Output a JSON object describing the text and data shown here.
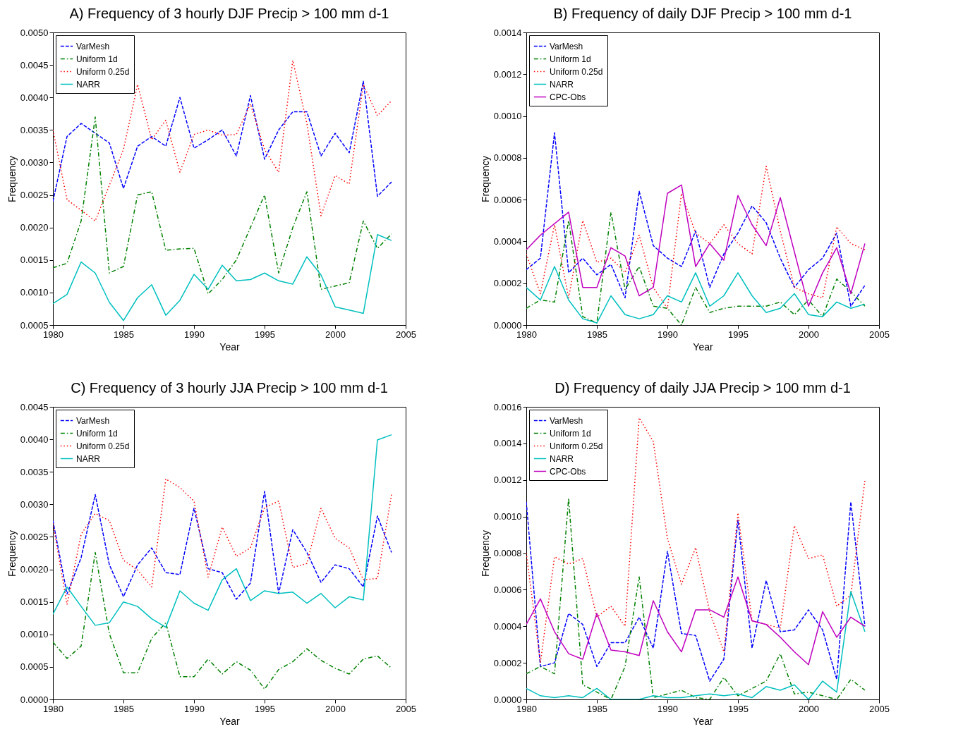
{
  "chart_data": [
    {
      "type": "line",
      "title": "A) Frequency of 3 hourly DJF Precip > 100 mm d-1",
      "xlabel": "Year",
      "ylabel": "Frequency",
      "x": [
        1980,
        1981,
        1982,
        1983,
        1984,
        1985,
        1986,
        1987,
        1988,
        1989,
        1990,
        1991,
        1992,
        1993,
        1994,
        1995,
        1996,
        1997,
        1998,
        1999,
        2000,
        2001,
        2002,
        2003,
        2004
      ],
      "xlim": [
        1980,
        2005
      ],
      "xticks": [
        1980,
        1985,
        1990,
        1995,
        2000,
        2005
      ],
      "ylim": [
        0.0005,
        0.005
      ],
      "yticks": [
        {
          "value": 0.0005,
          "label": "0.0005"
        },
        {
          "value": 0.001,
          "label": "0.0010"
        },
        {
          "value": 0.0015,
          "label": "0.0015"
        },
        {
          "value": 0.002,
          "label": "0.0020"
        },
        {
          "value": 0.0025,
          "label": "0.0025"
        },
        {
          "value": 0.003,
          "label": "0.0030"
        },
        {
          "value": 0.0035,
          "label": "0.0035"
        },
        {
          "value": 0.004,
          "label": "0.0040"
        },
        {
          "value": 0.0045,
          "label": "0.0045"
        },
        {
          "value": 0.005,
          "label": "0.0050"
        }
      ],
      "legend": "top left",
      "grid": false,
      "series": [
        {
          "name": "VarMesh",
          "color": "#0000ff",
          "line_style": "dashed",
          "values": [
            0.0024,
            0.0034,
            0.0036,
            null,
            0.0033,
            0.0026,
            0.00325,
            0.0034,
            0.00325,
            0.004,
            0.00322,
            0.00335,
            0.0035,
            0.0031,
            0.00403,
            0.00305,
            0.0035,
            0.00378,
            0.00378,
            0.0031,
            0.00345,
            0.00315,
            0.00425,
            0.00248,
            0.0027
          ]
        },
        {
          "name": "Uniform 1d",
          "color": "#008000",
          "line_style": "dashdot",
          "values": [
            0.00138,
            0.00145,
            0.0021,
            0.0037,
            0.0013,
            0.0014,
            0.0025,
            0.00255,
            0.00165,
            0.00167,
            0.00168,
            0.00098,
            0.0012,
            0.0015,
            0.002,
            0.0025,
            0.0013,
            0.002,
            0.00255,
            0.00105,
            0.0011,
            0.00115,
            0.0021,
            0.00168,
            0.0019
          ]
        },
        {
          "name": "Uniform 0.25d",
          "color": "#ff0000",
          "line_style": "dotted",
          "values": [
            0.0035,
            0.00243,
            null,
            0.0021,
            null,
            0.0032,
            0.0042,
            0.00335,
            0.00365,
            0.00285,
            0.00343,
            0.0035,
            0.00342,
            0.00343,
            0.0039,
            0.0032,
            0.00285,
            0.00457,
            0.0036,
            0.00218,
            0.0028,
            0.00267,
            0.0042,
            0.00372,
            0.00395
          ]
        },
        {
          "name": "NARR",
          "color": "#00bfbf",
          "line_style": "solid",
          "values": [
            0.00083,
            0.00097,
            0.00147,
            0.0013,
            0.00085,
            0.00057,
            0.00092,
            0.00112,
            0.00065,
            0.00088,
            0.00128,
            0.00105,
            0.00142,
            0.00118,
            0.0012,
            0.0013,
            0.00118,
            0.00113,
            0.00155,
            0.00127,
            0.00078,
            0.00073,
            0.00068,
            0.00189,
            0.0018
          ]
        }
      ]
    },
    {
      "type": "line",
      "title": "B) Frequency of daily DJF Precip > 100 mm d-1",
      "xlabel": "Year",
      "ylabel": "Frequency",
      "x": [
        1980,
        1981,
        1982,
        1983,
        1984,
        1985,
        1986,
        1987,
        1988,
        1989,
        1990,
        1991,
        1992,
        1993,
        1994,
        1995,
        1996,
        1997,
        1998,
        1999,
        2000,
        2001,
        2002,
        2003,
        2004
      ],
      "xlim": [
        1980,
        2005
      ],
      "xticks": [
        1980,
        1985,
        1990,
        1995,
        2000,
        2005
      ],
      "ylim": [
        0,
        0.0014
      ],
      "yticks": [
        {
          "value": 0,
          "label": "0.0000"
        },
        {
          "value": 0.0002,
          "label": "0.0002"
        },
        {
          "value": 0.0004,
          "label": "0.0004"
        },
        {
          "value": 0.0006,
          "label": "0.0006"
        },
        {
          "value": 0.0008,
          "label": "0.0008"
        },
        {
          "value": 0.001,
          "label": "0.0010"
        },
        {
          "value": 0.0012,
          "label": "0.0012"
        },
        {
          "value": 0.0014,
          "label": "0.0014"
        }
      ],
      "legend": "top left",
      "grid": false,
      "series": [
        {
          "name": "VarMesh",
          "color": "#0000ff",
          "line_style": "dashed",
          "values": [
            0.000265,
            0.00032,
            0.00092,
            0.00025,
            0.00032,
            0.00024,
            0.00029,
            0.00013,
            0.00064,
            0.00038,
            0.00032,
            0.00028,
            0.00045,
            0.00018,
            0.00034,
            0.00044,
            0.00057,
            0.00049,
            0.00032,
            0.00018,
            0.000265,
            0.00032,
            0.00044,
            9e-05,
            0.00019
          ]
        },
        {
          "name": "Uniform 1d",
          "color": "#008000",
          "line_style": "dashdot",
          "values": [
            8e-05,
            0.00012,
            0.00011,
            0.0005,
            4e-05,
            1e-05,
            0.00054,
            0.00017,
            0.00028,
            9e-05,
            8e-05,
            0,
            0.00018,
            6e-05,
            8e-05,
            9e-05,
            9e-05,
            9e-05,
            0.00011,
            5e-05,
            0.00012,
            4e-05,
            0.00022,
            0.00016,
            9e-05
          ]
        },
        {
          "name": "Uniform 0.25d",
          "color": "#ff0000",
          "line_style": "dotted",
          "values": [
            0.00034,
            0.00015,
            0.00048,
            0.00013,
            0.0005,
            0.0003,
            0.00032,
            0.00025,
            0.00043,
            0.00018,
            8e-05,
            0.00063,
            0.00044,
            0.00039,
            0.00048,
            0.00039,
            0.00034,
            0.00076,
            0.00045,
            0.00018,
            0.00015,
            0.00013,
            0.00047,
            0.00039,
            0.00036
          ]
        },
        {
          "name": "NARR",
          "color": "#00bfbf",
          "line_style": "solid",
          "values": [
            0.00018,
            0.00012,
            0.00028,
            0.00012,
            3e-05,
            1e-05,
            0.00014,
            5e-05,
            3e-05,
            5e-05,
            0.00014,
            0.00011,
            0.00025,
            9e-05,
            0.00014,
            0.00025,
            0.00014,
            6e-05,
            8e-05,
            0.00015,
            5e-05,
            4e-05,
            0.00011,
            8e-05,
            0.0001
          ]
        },
        {
          "name": "CPC-Obs",
          "color": "#bf00bf",
          "line_style": "solid",
          "values": [
            0.00036,
            0.00043,
            null,
            0.00054,
            0.00018,
            0.00018,
            0.00037,
            0.00033,
            0.00014,
            0.00018,
            0.00063,
            0.00067,
            0.00028,
            0.00039,
            0.00031,
            0.00062,
            0.00048,
            0.00038,
            0.00061,
            0.00035,
            9e-05,
            0.00025,
            0.00037,
            0.00015,
            0.00039
          ]
        }
      ]
    },
    {
      "type": "line",
      "title": "C) Frequency of 3 hourly JJA Precip > 100 mm d-1",
      "xlabel": "Year",
      "ylabel": "Frequency",
      "x": [
        1980,
        1981,
        1982,
        1983,
        1984,
        1985,
        1986,
        1987,
        1988,
        1989,
        1990,
        1991,
        1992,
        1993,
        1994,
        1995,
        1996,
        1997,
        1998,
        1999,
        2000,
        2001,
        2002,
        2003,
        2004
      ],
      "xlim": [
        1980,
        2005
      ],
      "xticks": [
        1980,
        1985,
        1990,
        1995,
        2000,
        2005
      ],
      "ylim": [
        0,
        0.0045
      ],
      "yticks": [
        {
          "value": 0,
          "label": "0.0000"
        },
        {
          "value": 0.0005,
          "label": "0.0005"
        },
        {
          "value": 0.001,
          "label": "0.0010"
        },
        {
          "value": 0.0015,
          "label": "0.0015"
        },
        {
          "value": 0.002,
          "label": "0.0020"
        },
        {
          "value": 0.0025,
          "label": "0.0025"
        },
        {
          "value": 0.003,
          "label": "0.0030"
        },
        {
          "value": 0.0035,
          "label": "0.0035"
        },
        {
          "value": 0.004,
          "label": "0.0040"
        },
        {
          "value": 0.0045,
          "label": "0.0045"
        }
      ],
      "legend": "top left",
      "grid": false,
      "series": [
        {
          "name": "VarMesh",
          "color": "#0000ff",
          "line_style": "dashed",
          "values": [
            0.00275,
            0.00162,
            0.00218,
            0.00315,
            0.00207,
            0.00158,
            0.00207,
            0.00233,
            0.00195,
            0.00192,
            0.00294,
            0.00201,
            0.00195,
            0.00154,
            0.00179,
            0.0032,
            0.00163,
            0.00261,
            0.00226,
            0.0018,
            0.00207,
            0.00201,
            0.00173,
            0.00282,
            0.00226
          ]
        },
        {
          "name": "Uniform 1d",
          "color": "#008000",
          "line_style": "dashdot",
          "values": [
            0.00088,
            0.00063,
            0.00082,
            0.00226,
            0.00101,
            0.00041,
            0.00041,
            0.00094,
            0.00118,
            0.00035,
            0.00035,
            0.00062,
            0.00039,
            0.00058,
            0.00045,
            0.00016,
            0.00046,
            0.00058,
            0.00078,
            0.0006,
            0.00048,
            0.00039,
            0.00062,
            0.00067,
            0.00048
          ]
        },
        {
          "name": "Uniform 0.25d",
          "color": "#ff0000",
          "line_style": "dotted",
          "values": [
            0.00271,
            0.00146,
            0.00254,
            0.00286,
            0.00275,
            0.00214,
            0.00199,
            0.00173,
            0.00339,
            0.00326,
            0.00305,
            0.00188,
            0.00265,
            0.0022,
            0.00233,
            0.00295,
            0.00305,
            0.00203,
            0.00209,
            0.00294,
            0.00248,
            0.00233,
            0.00184,
            0.00186,
            0.00315
          ]
        },
        {
          "name": "NARR",
          "color": "#00bfbf",
          "line_style": "solid",
          "values": [
            0.00131,
            0.00173,
            0.00143,
            0.00114,
            0.00118,
            0.0015,
            0.00143,
            0.00124,
            0.00111,
            0.00167,
            0.00148,
            0.00137,
            0.00184,
            0.00201,
            0.00152,
            0.00167,
            0.00163,
            0.00165,
            0.00148,
            0.00163,
            0.00141,
            0.00158,
            0.00153,
            0.00399,
            0.00407
          ]
        }
      ]
    },
    {
      "type": "line",
      "title": "D) Frequency of daily JJA Precip > 100 mm d-1",
      "xlabel": "Year",
      "ylabel": "Frequency",
      "x": [
        1980,
        1981,
        1982,
        1983,
        1984,
        1985,
        1986,
        1987,
        1988,
        1989,
        1990,
        1991,
        1992,
        1993,
        1994,
        1995,
        1996,
        1997,
        1998,
        1999,
        2000,
        2001,
        2002,
        2003,
        2004
      ],
      "xlim": [
        1980,
        2005
      ],
      "xticks": [
        1980,
        1985,
        1990,
        1995,
        2000,
        2005
      ],
      "ylim": [
        0,
        0.0016
      ],
      "yticks": [
        {
          "value": 0,
          "label": "0.0000"
        },
        {
          "value": 0.0002,
          "label": "0.0002"
        },
        {
          "value": 0.0004,
          "label": "0.0004"
        },
        {
          "value": 0.0006,
          "label": "0.0006"
        },
        {
          "value": 0.0008,
          "label": "0.0008"
        },
        {
          "value": 0.001,
          "label": "0.0010"
        },
        {
          "value": 0.0012,
          "label": "0.0012"
        },
        {
          "value": 0.0014,
          "label": "0.0014"
        },
        {
          "value": 0.0016,
          "label": "0.0016"
        }
      ],
      "legend": "top left",
      "grid": false,
      "series": [
        {
          "name": "VarMesh",
          "color": "#0000ff",
          "line_style": "dashed",
          "values": [
            0.00108,
            0.00018,
            0.0002,
            0.00047,
            0.00041,
            0.00018,
            0.00031,
            0.00031,
            0.00045,
            0.00028,
            0.00081,
            0.00036,
            0.00035,
            0.0001,
            0.00022,
            0.00098,
            0.00028,
            0.00065,
            0.00037,
            0.00038,
            0.00049,
            0.00038,
            0.00011,
            0.00108,
            0.0004
          ]
        },
        {
          "name": "Uniform 1d",
          "color": "#008000",
          "line_style": "dashdot",
          "values": [
            0.00014,
            0.00018,
            0.00014,
            0.0011,
            8e-05,
            4e-05,
            0,
            0.00018,
            0.00067,
            1e-05,
            3e-05,
            5e-05,
            1e-05,
            0,
            0.00012,
            2e-05,
            6e-05,
            0.0001,
            0.00025,
            3e-05,
            4e-05,
            2e-05,
            0,
            0.00011,
            5e-05
          ]
        },
        {
          "name": "Uniform 0.25d",
          "color": "#ff0000",
          "line_style": "dotted",
          "values": [
            0.0008,
            0.0002,
            0.00078,
            0.00074,
            0.00077,
            0.00045,
            0.00051,
            0.0004,
            0.00154,
            0.00141,
            0.00088,
            0.00063,
            0.00083,
            0.00048,
            0.00026,
            0.00102,
            0.00043,
            0.00041,
            0.00039,
            0.00095,
            0.00077,
            0.00079,
            0.00051,
            0.00057,
            0.0012
          ]
        },
        {
          "name": "NARR",
          "color": "#00bfbf",
          "line_style": "solid",
          "values": [
            6e-05,
            2e-05,
            1e-05,
            2e-05,
            1e-05,
            6e-05,
            0,
            0,
            0,
            2e-05,
            1e-05,
            1e-05,
            2e-05,
            3e-05,
            2e-05,
            3e-05,
            1e-05,
            7e-05,
            5e-05,
            8e-05,
            0,
            0.0001,
            4e-05,
            0.00059,
            0.00037
          ]
        },
        {
          "name": "CPC-Obs",
          "color": "#bf00bf",
          "line_style": "solid",
          "values": [
            0.00041,
            0.00055,
            0.00037,
            0.00025,
            0.00022,
            0.00047,
            0.00027,
            0.00026,
            0.00024,
            0.00054,
            0.00037,
            0.00026,
            0.00049,
            0.00049,
            0.00045,
            0.00067,
            0.00043,
            0.00041,
            0.00034,
            0.00026,
            0.00019,
            0.00048,
            0.00034,
            0.00045,
            0.0004
          ]
        }
      ]
    }
  ]
}
